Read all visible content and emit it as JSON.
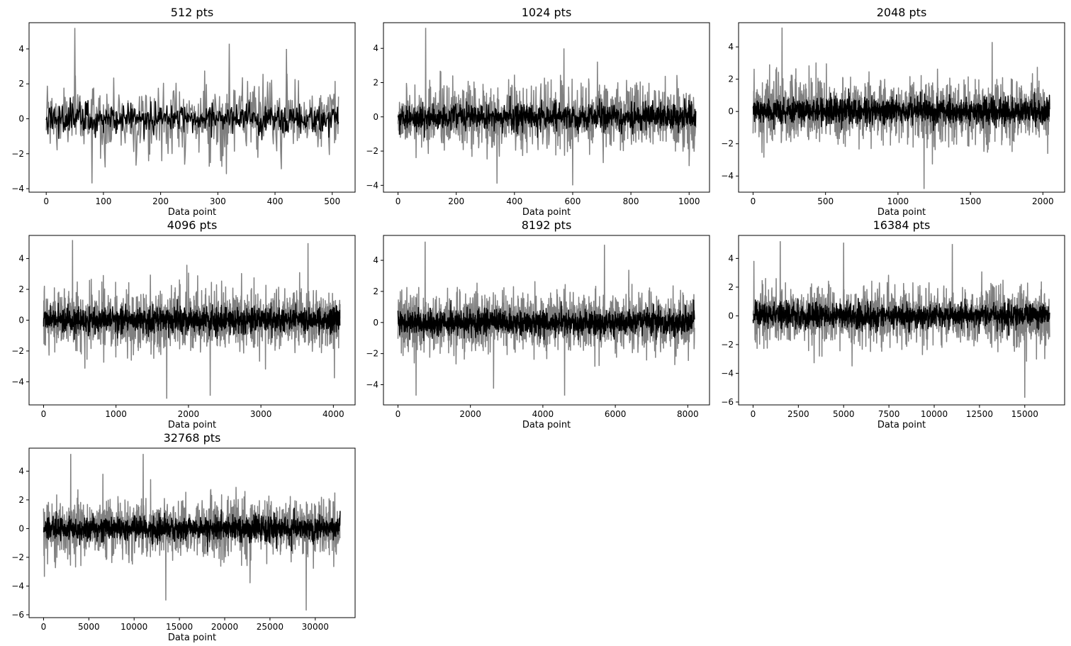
{
  "colors": {
    "raw_series": "#808080",
    "filtered_series": "#000000"
  },
  "chart_data": [
    {
      "type": "line",
      "title": "512 pts",
      "n_points": 512,
      "xlabel": "Data point",
      "ylabel": "",
      "xlim": [
        -30,
        540
      ],
      "ylim": [
        -4.2,
        5.5
      ],
      "xticks": [
        0,
        100,
        200,
        300,
        400,
        500
      ],
      "yticks": [
        -4,
        -2,
        0,
        2,
        4
      ],
      "series": [
        {
          "role": "raw",
          "band": [
            -3.7,
            5.2
          ],
          "spikes": [
            [
              50,
              5.2
            ],
            [
              80,
              -3.7
            ],
            [
              320,
              4.3
            ],
            [
              420,
              4.0
            ]
          ]
        },
        {
          "role": "filtered",
          "band": [
            -1.2,
            1.2
          ]
        }
      ]
    },
    {
      "type": "line",
      "title": "1024 pts",
      "n_points": 1024,
      "xlabel": "Data point",
      "ylabel": "",
      "xlim": [
        -50,
        1070
      ],
      "ylim": [
        -4.4,
        5.5
      ],
      "xticks": [
        0,
        200,
        400,
        600,
        800,
        1000
      ],
      "yticks": [
        -4,
        -2,
        0,
        2,
        4
      ],
      "series": [
        {
          "role": "raw",
          "band": [
            -4.0,
            5.2
          ],
          "spikes": [
            [
              95,
              5.2
            ],
            [
              570,
              4.0
            ],
            [
              600,
              -4.0
            ],
            [
              340,
              -3.9
            ]
          ]
        },
        {
          "role": "filtered",
          "band": [
            -1.2,
            1.2
          ]
        }
      ]
    },
    {
      "type": "line",
      "title": "2048 pts",
      "n_points": 2048,
      "xlabel": "Data point",
      "ylabel": "",
      "xlim": [
        -100,
        2150
      ],
      "ylim": [
        -5.0,
        5.5
      ],
      "xticks": [
        0,
        500,
        1000,
        1500,
        2000
      ],
      "yticks": [
        -4,
        -2,
        0,
        2,
        4
      ],
      "series": [
        {
          "role": "raw",
          "band": [
            -4.8,
            5.2
          ],
          "spikes": [
            [
              200,
              5.2
            ],
            [
              1180,
              -4.8
            ],
            [
              1650,
              4.3
            ]
          ]
        },
        {
          "role": "filtered",
          "band": [
            -1.4,
            1.4
          ]
        }
      ]
    },
    {
      "type": "line",
      "title": "4096 pts",
      "n_points": 4096,
      "xlabel": "Data point",
      "ylabel": "",
      "xlim": [
        -200,
        4300
      ],
      "ylim": [
        -5.5,
        5.5
      ],
      "xticks": [
        0,
        1000,
        2000,
        3000,
        4000
      ],
      "yticks": [
        -4,
        -2,
        0,
        2,
        4
      ],
      "series": [
        {
          "role": "raw",
          "band": [
            -5.1,
            5.2
          ],
          "spikes": [
            [
              400,
              5.2
            ],
            [
              1700,
              -5.1
            ],
            [
              2300,
              -4.9
            ],
            [
              3650,
              5.0
            ]
          ]
        },
        {
          "role": "filtered",
          "band": [
            -1.5,
            1.4
          ]
        }
      ]
    },
    {
      "type": "line",
      "title": "8192 pts",
      "n_points": 8192,
      "xlabel": "Data point",
      "ylabel": "",
      "xlim": [
        -400,
        8600
      ],
      "ylim": [
        -5.3,
        5.6
      ],
      "xticks": [
        0,
        2000,
        4000,
        6000,
        8000
      ],
      "yticks": [
        -4,
        -2,
        0,
        2,
        4
      ],
      "series": [
        {
          "role": "raw",
          "band": [
            -4.7,
            5.2
          ],
          "spikes": [
            [
              750,
              5.2
            ],
            [
              4600,
              -4.7
            ],
            [
              5700,
              5.0
            ],
            [
              500,
              -4.7
            ]
          ]
        },
        {
          "role": "filtered",
          "band": [
            -1.5,
            1.5
          ]
        }
      ]
    },
    {
      "type": "line",
      "title": "16384 pts",
      "n_points": 16384,
      "xlabel": "Data point",
      "ylabel": "",
      "xlim": [
        -800,
        17200
      ],
      "ylim": [
        -6.2,
        5.6
      ],
      "xticks": [
        0,
        2500,
        5000,
        7500,
        10000,
        12500,
        15000
      ],
      "yticks": [
        -6,
        -4,
        -2,
        0,
        2,
        4
      ],
      "series": [
        {
          "role": "raw",
          "band": [
            -5.7,
            5.2
          ],
          "spikes": [
            [
              1500,
              5.2
            ],
            [
              15000,
              -5.7
            ],
            [
              5000,
              5.1
            ],
            [
              11000,
              5.0
            ]
          ]
        },
        {
          "role": "filtered",
          "band": [
            -1.5,
            1.5
          ]
        }
      ]
    },
    {
      "type": "line",
      "title": "32768 pts",
      "n_points": 32768,
      "xlabel": "Data point",
      "ylabel": "",
      "xlim": [
        -1600,
        34400
      ],
      "ylim": [
        -6.2,
        5.6
      ],
      "xticks": [
        0,
        5000,
        10000,
        15000,
        20000,
        25000,
        30000
      ],
      "yticks": [
        -6,
        -4,
        -2,
        0,
        2,
        4
      ],
      "series": [
        {
          "role": "raw",
          "band": [
            -5.7,
            5.2
          ],
          "spikes": [
            [
              29000,
              -5.7
            ],
            [
              3000,
              5.2
            ],
            [
              11000,
              5.2
            ],
            [
              13500,
              -5.0
            ]
          ]
        },
        {
          "role": "filtered",
          "band": [
            -1.6,
            1.6
          ]
        }
      ]
    }
  ]
}
